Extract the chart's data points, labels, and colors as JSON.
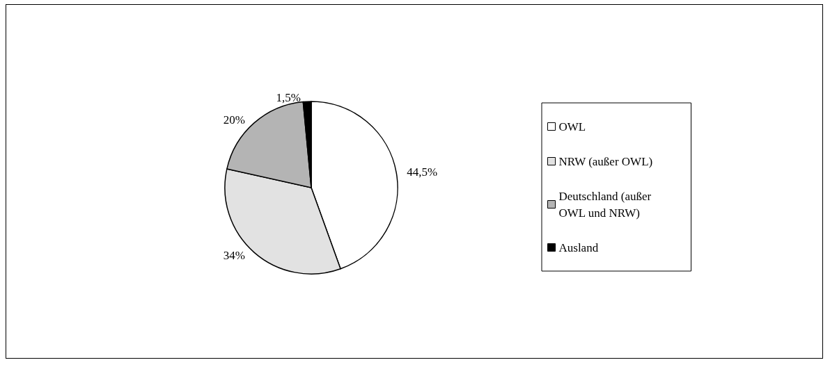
{
  "chart_data": {
    "type": "pie",
    "categories": [
      "OWL",
      "NRW (außer OWL)",
      "Deutschland (außer OWL und NRW)",
      "Ausland"
    ],
    "values": [
      44.5,
      34,
      20,
      1.5
    ],
    "colors": [
      "#ffffff",
      "#e2e2e2",
      "#b4b4b4",
      "#000000"
    ],
    "value_labels": [
      "44,5%",
      "34%",
      "20%",
      "1,5%"
    ],
    "legend": "right"
  }
}
